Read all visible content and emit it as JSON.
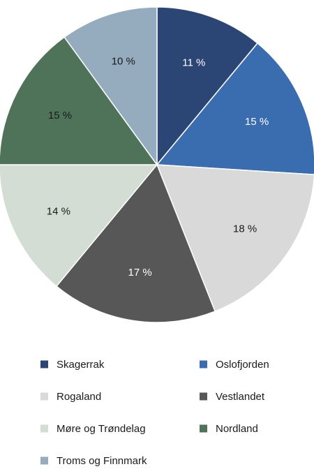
{
  "chart_data": {
    "type": "pie",
    "title": "",
    "start_angle_deg": 0,
    "direction": "clockwise",
    "legend_position": "bottom",
    "slices": [
      {
        "name": "Skagerrak",
        "value": 11,
        "label": "11 %",
        "color": "#2b4674",
        "label_color": "#ffffff"
      },
      {
        "name": "Oslofjorden",
        "value": 15,
        "label": "15 %",
        "color": "#3a6cb0",
        "label_color": "#ffffff"
      },
      {
        "name": "Rogaland",
        "value": 18,
        "label": "18 %",
        "color": "#d9d9d9",
        "label_color": "#1a1a1a"
      },
      {
        "name": "Vestlandet",
        "value": 17,
        "label": "17 %",
        "color": "#575757",
        "label_color": "#ffffff"
      },
      {
        "name": "Møre og Trøndelag",
        "value": 14,
        "label": "14 %",
        "color": "#d3ddd3",
        "label_color": "#1a1a1a"
      },
      {
        "name": "Nordland",
        "value": 15,
        "label": "15 %",
        "color": "#4f7358",
        "label_color": "#1a1a1a"
      },
      {
        "name": "Troms og Finnmark",
        "value": 10,
        "label": "10 %",
        "color": "#94acbe",
        "label_color": "#1a1a1a"
      }
    ]
  }
}
